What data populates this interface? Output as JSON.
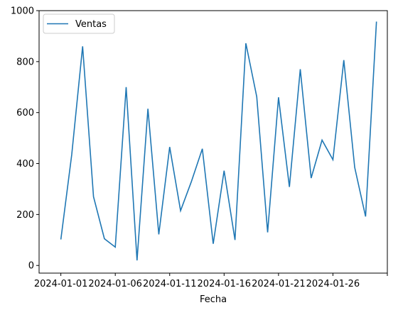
{
  "chart_data": {
    "type": "line",
    "title": "",
    "xlabel": "Fecha",
    "ylabel": "",
    "x_start": "2024-01-01",
    "x": [
      "2024-01-01",
      "2024-01-02",
      "2024-01-03",
      "2024-01-04",
      "2024-01-05",
      "2024-01-06",
      "2024-01-07",
      "2024-01-08",
      "2024-01-09",
      "2024-01-10",
      "2024-01-11",
      "2024-01-12",
      "2024-01-13",
      "2024-01-14",
      "2024-01-15",
      "2024-01-16",
      "2024-01-17",
      "2024-01-18",
      "2024-01-19",
      "2024-01-20",
      "2024-01-21",
      "2024-01-22",
      "2024-01-23",
      "2024-01-24",
      "2024-01-25",
      "2024-01-26",
      "2024-01-27",
      "2024-01-28",
      "2024-01-29",
      "2024-01-30"
    ],
    "xticks": [
      "2024-01-01",
      "2024-01-06",
      "2024-01-11",
      "2024-01-16",
      "2024-01-21",
      "2024-01-26"
    ],
    "xlim": [
      "2023-12-30",
      "2024-01-31"
    ],
    "yticks": [
      0,
      200,
      400,
      600,
      800,
      1000
    ],
    "ylim": [
      -30,
      1000
    ],
    "grid": false,
    "legend_position": "upper-left",
    "series": [
      {
        "name": "Ventas",
        "color": "#1f77b4",
        "values": [
          102,
          435,
          860,
          270,
          105,
          72,
          700,
          20,
          615,
          122,
          465,
          215,
          330,
          458,
          85,
          372,
          100,
          872,
          662,
          130,
          660,
          308,
          770,
          343,
          492,
          415,
          806,
          385,
          192,
          957
        ]
      }
    ]
  }
}
